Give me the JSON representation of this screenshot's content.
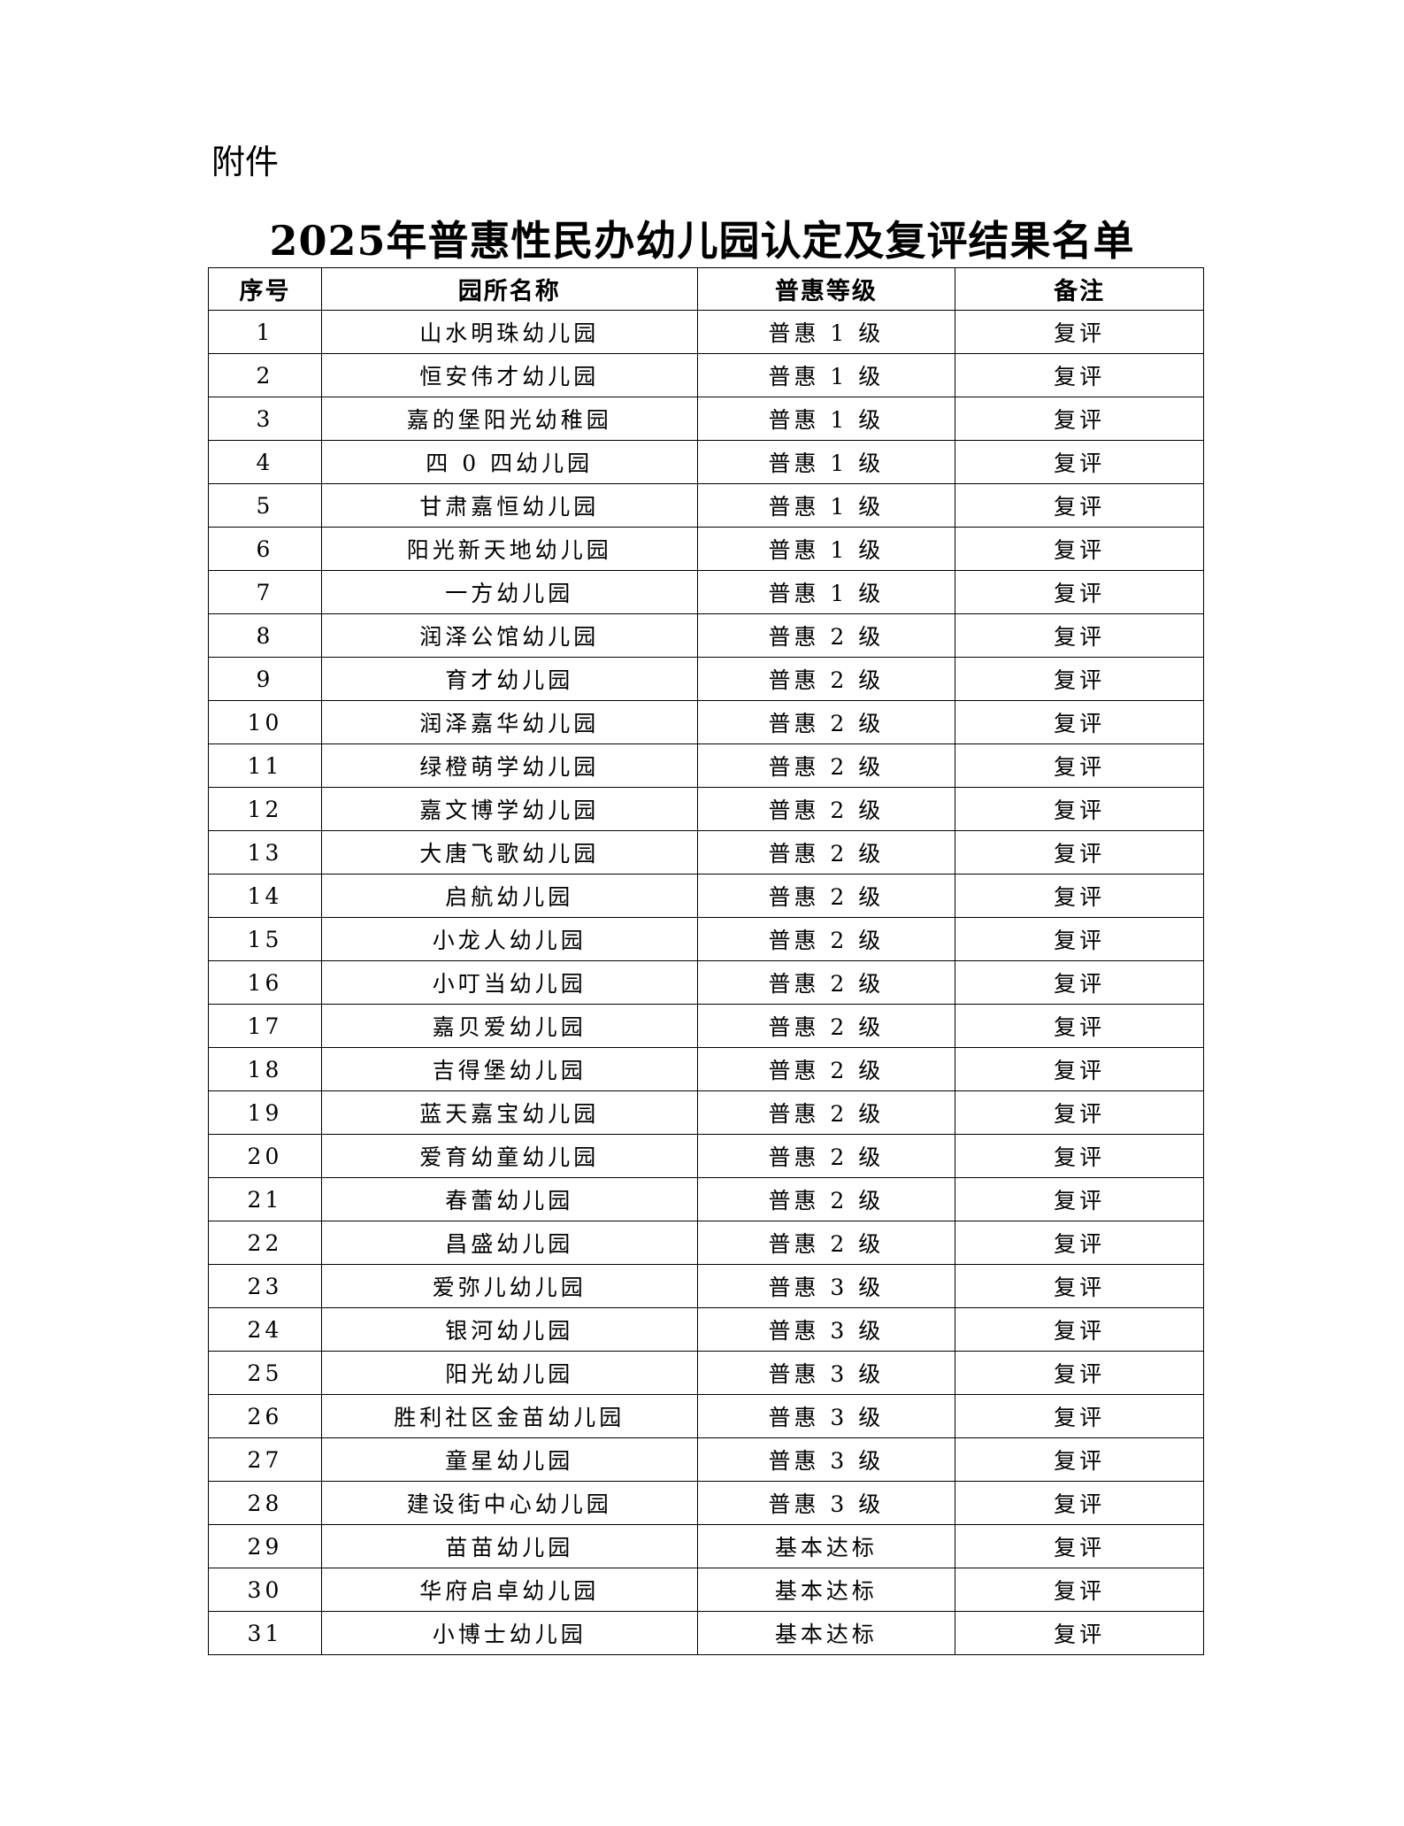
{
  "attachment_label": "附件",
  "title": "2025年普惠性民办幼儿园认定及复评结果名单",
  "headers": [
    "序号",
    "园所名称",
    "普惠等级",
    "备注"
  ],
  "rows": [
    [
      "1",
      "山水明珠幼儿园",
      "普惠 1 级",
      "复评"
    ],
    [
      "2",
      "恒安伟才幼儿园",
      "普惠 1 级",
      "复评"
    ],
    [
      "3",
      "嘉的堡阳光幼稚园",
      "普惠 1 级",
      "复评"
    ],
    [
      "4",
      "四 0 四幼儿园",
      "普惠 1 级",
      "复评"
    ],
    [
      "5",
      "甘肃嘉恒幼儿园",
      "普惠 1 级",
      "复评"
    ],
    [
      "6",
      "阳光新天地幼儿园",
      "普惠 1 级",
      "复评"
    ],
    [
      "7",
      "一方幼儿园",
      "普惠 1 级",
      "复评"
    ],
    [
      "8",
      "润泽公馆幼儿园",
      "普惠 2 级",
      "复评"
    ],
    [
      "9",
      "育才幼儿园",
      "普惠 2 级",
      "复评"
    ],
    [
      "10",
      "润泽嘉华幼儿园",
      "普惠 2 级",
      "复评"
    ],
    [
      "11",
      "绿橙萌学幼儿园",
      "普惠 2 级",
      "复评"
    ],
    [
      "12",
      "嘉文博学幼儿园",
      "普惠 2 级",
      "复评"
    ],
    [
      "13",
      "大唐飞歌幼儿园",
      "普惠 2 级",
      "复评"
    ],
    [
      "14",
      "启航幼儿园",
      "普惠 2 级",
      "复评"
    ],
    [
      "15",
      "小龙人幼儿园",
      "普惠 2 级",
      "复评"
    ],
    [
      "16",
      "小叮当幼儿园",
      "普惠 2 级",
      "复评"
    ],
    [
      "17",
      "嘉贝爱幼儿园",
      "普惠 2 级",
      "复评"
    ],
    [
      "18",
      "吉得堡幼儿园",
      "普惠 2 级",
      "复评"
    ],
    [
      "19",
      "蓝天嘉宝幼儿园",
      "普惠 2 级",
      "复评"
    ],
    [
      "20",
      "爱育幼童幼儿园",
      "普惠 2 级",
      "复评"
    ],
    [
      "21",
      "春蕾幼儿园",
      "普惠 2 级",
      "复评"
    ],
    [
      "22",
      "昌盛幼儿园",
      "普惠 2 级",
      "复评"
    ],
    [
      "23",
      "爱弥儿幼儿园",
      "普惠 3 级",
      "复评"
    ],
    [
      "24",
      "银河幼儿园",
      "普惠 3 级",
      "复评"
    ],
    [
      "25",
      "阳光幼儿园",
      "普惠 3 级",
      "复评"
    ],
    [
      "26",
      "胜利社区金苗幼儿园",
      "普惠 3 级",
      "复评"
    ],
    [
      "27",
      "童星幼儿园",
      "普惠 3 级",
      "复评"
    ],
    [
      "28",
      "建设街中心幼儿园",
      "普惠 3 级",
      "复评"
    ],
    [
      "29",
      "苗苗幼儿园",
      "基本达标",
      "复评"
    ],
    [
      "30",
      "华府启卓幼儿园",
      "基本达标",
      "复评"
    ],
    [
      "31",
      "小博士幼儿园",
      "基本达标",
      "复评"
    ]
  ]
}
